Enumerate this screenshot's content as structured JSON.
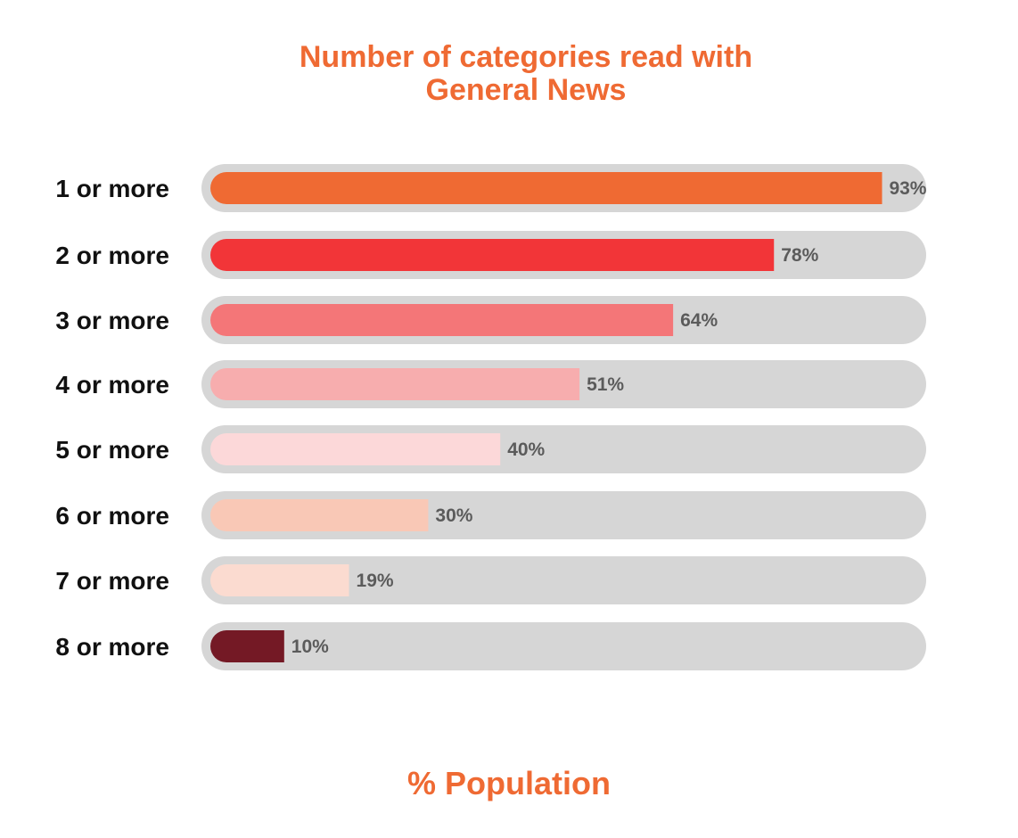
{
  "chart_data": {
    "type": "bar",
    "orientation": "horizontal",
    "title_lines": [
      "Number of categories read with",
      "General News"
    ],
    "categories": [
      "1 or more",
      "2 or more",
      "3 or more",
      "4 or more",
      "5 or more",
      "6 or more",
      "7 or more",
      "8 or more"
    ],
    "values": [
      93,
      78,
      64,
      51,
      40,
      30,
      19,
      10
    ],
    "value_labels": [
      "93%",
      "78%",
      "64%",
      "51%",
      "40%",
      "30%",
      "19%",
      "10%"
    ],
    "bar_colors": [
      "#EF6A33",
      "#F23538",
      "#F47678",
      "#F7ADAE",
      "#FCD8D9",
      "#F9C8B6",
      "#FBDBD0",
      "#741925"
    ],
    "track_color": "#D6D6D6",
    "xlabel": "% Population",
    "ylabel": "",
    "xlim": [
      0,
      100
    ],
    "grid": false,
    "legend": "none"
  },
  "colors": {
    "accent": "#EF6A33",
    "category_label": "#111111",
    "value_label": "#5B5B5B"
  }
}
